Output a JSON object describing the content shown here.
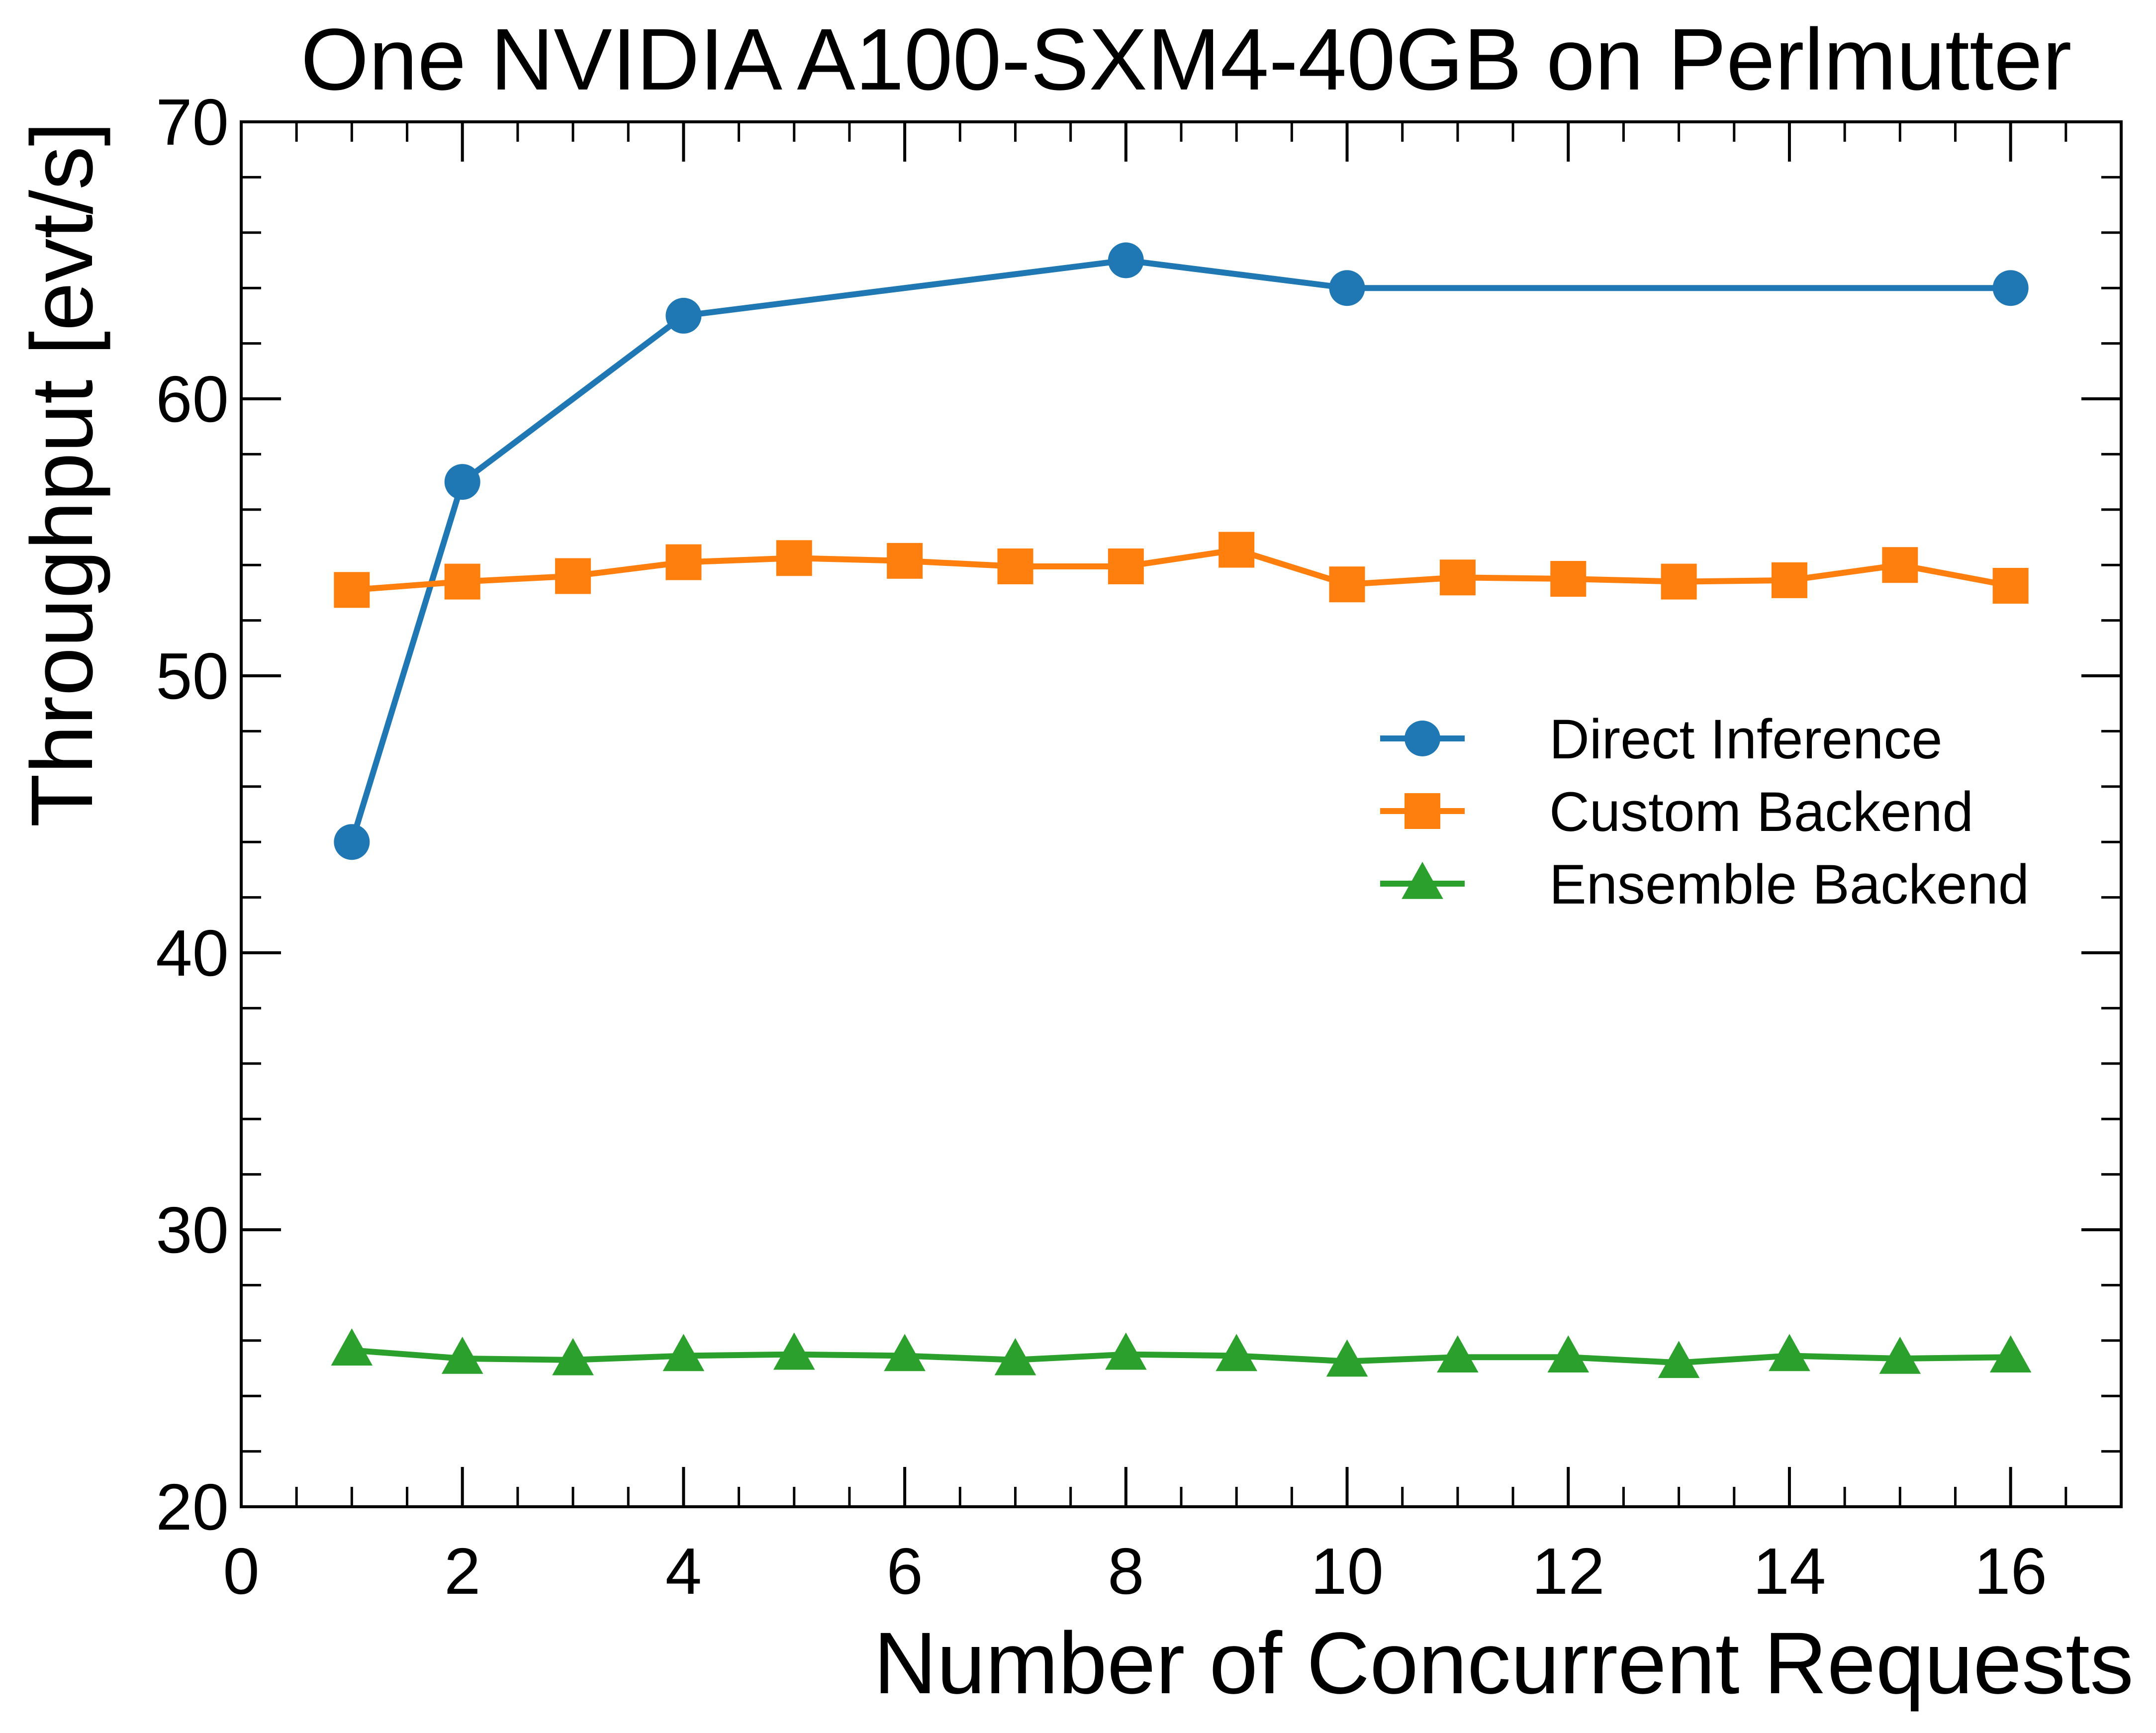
{
  "chart_data": {
    "type": "line",
    "title": "One NVIDIA A100-SXM4-40GB on Perlmutter",
    "xlabel": "Number of Concurrent Requests",
    "ylabel": "Throughput [evt/s]",
    "xlim": [
      0,
      17
    ],
    "ylim": [
      20,
      70
    ],
    "x_ticks": [
      0,
      2,
      4,
      6,
      8,
      10,
      12,
      14,
      16
    ],
    "y_ticks": [
      20,
      30,
      40,
      50,
      60,
      70
    ],
    "grid": false,
    "legend_position": "center-right",
    "series": [
      {
        "name": "Direct Inference",
        "color": "#1f77b4",
        "marker": "circle",
        "x": [
          1,
          2,
          4,
          8,
          10,
          16
        ],
        "values": [
          44,
          57,
          63,
          65,
          64,
          64
        ]
      },
      {
        "name": "Custom Backend",
        "color": "#ff7f0e",
        "marker": "square",
        "x": [
          1,
          2,
          3,
          4,
          5,
          6,
          7,
          8,
          9,
          10,
          11,
          12,
          13,
          14,
          15,
          16
        ],
        "values": [
          53.1,
          53.4,
          53.6,
          54.1,
          54.25,
          54.15,
          53.95,
          53.95,
          54.55,
          53.3,
          53.55,
          53.5,
          53.4,
          53.45,
          54.0,
          53.25
        ]
      },
      {
        "name": "Ensemble Backend",
        "color": "#2ca02c",
        "marker": "triangle",
        "x": [
          1,
          2,
          3,
          4,
          5,
          6,
          7,
          8,
          9,
          10,
          11,
          12,
          13,
          14,
          15,
          16
        ],
        "values": [
          25.65,
          25.35,
          25.3,
          25.45,
          25.5,
          25.45,
          25.3,
          25.5,
          25.45,
          25.25,
          25.4,
          25.4,
          25.2,
          25.45,
          25.35,
          25.4
        ]
      }
    ]
  }
}
